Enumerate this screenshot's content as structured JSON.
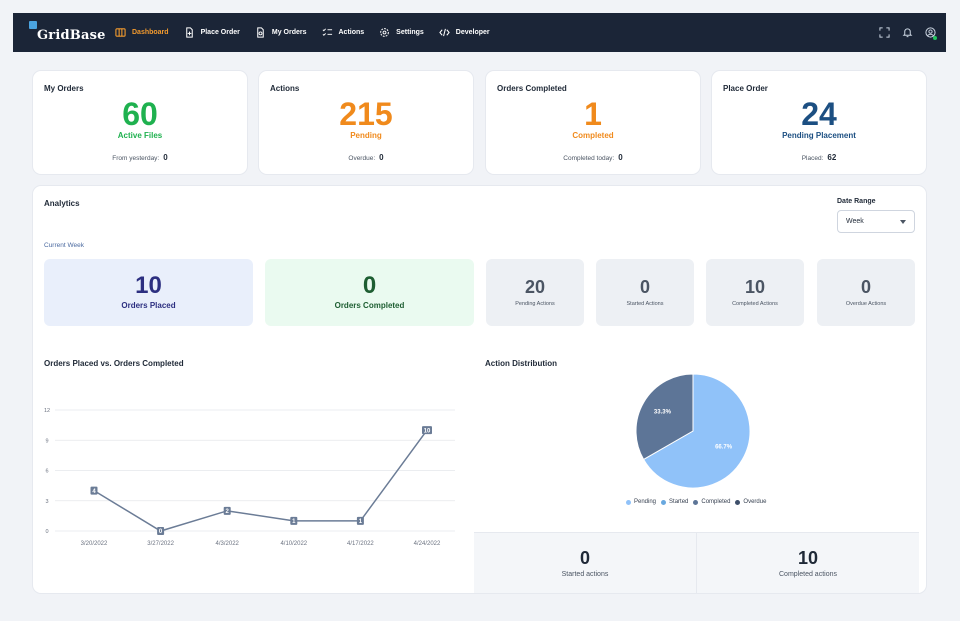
{
  "app": {
    "brand": "GridBase",
    "nav": [
      {
        "label": "Dashboard",
        "icon": "dashboard-icon",
        "active": true
      },
      {
        "label": "Place Order",
        "icon": "place-order-icon",
        "active": false
      },
      {
        "label": "My Orders",
        "icon": "my-orders-icon",
        "active": false
      },
      {
        "label": "Actions",
        "icon": "actions-icon",
        "active": false
      },
      {
        "label": "Settings",
        "icon": "gear-icon",
        "active": false
      },
      {
        "label": "Developer",
        "icon": "code-icon",
        "active": false
      }
    ],
    "right_icons": [
      "fullscreen-icon",
      "bell-icon",
      "user-icon"
    ]
  },
  "stats": [
    {
      "title": "My Orders",
      "value": "60",
      "subtitle": "Active Files",
      "foot_label": "From yesterday:",
      "foot_value": "0",
      "color": "#1fb14f"
    },
    {
      "title": "Actions",
      "value": "215",
      "subtitle": "Pending",
      "foot_label": "Overdue:",
      "foot_value": "0",
      "color": "#f08a1c"
    },
    {
      "title": "Orders Completed",
      "value": "1",
      "subtitle": "Completed",
      "foot_label": "Completed today:",
      "foot_value": "0",
      "color": "#f08a1c"
    },
    {
      "title": "Place Order",
      "value": "24",
      "subtitle": "Pending Placement",
      "foot_label": "Placed:",
      "foot_value": "62",
      "color": "#1c4f82"
    }
  ],
  "analytics": {
    "title": "Analytics",
    "date_range_label": "Date Range",
    "date_range_value": "Week",
    "period_label": "Current Week",
    "big_tiles": [
      {
        "value": "10",
        "label": "Orders Placed",
        "color": "#2c2f80",
        "bg": "#e9effb"
      },
      {
        "value": "0",
        "label": "Orders Completed",
        "color": "#1e5e32",
        "bg": "#eafaf0"
      }
    ],
    "small_tiles": [
      {
        "value": "20",
        "label": "Pending Actions"
      },
      {
        "value": "0",
        "label": "Started Actions"
      },
      {
        "value": "10",
        "label": "Completed Actions"
      },
      {
        "value": "0",
        "label": "Overdue Actions"
      }
    ],
    "line_title": "Orders Placed vs. Orders Completed",
    "pie_title": "Action Distribution",
    "bottom": [
      {
        "value": "0",
        "label": "Started actions"
      },
      {
        "value": "10",
        "label": "Completed actions"
      }
    ]
  },
  "chart_data": [
    {
      "type": "line",
      "title": "Orders Placed vs. Orders Completed",
      "x": [
        "3/20/2022",
        "3/27/2022",
        "4/3/2022",
        "4/10/2022",
        "4/17/2022",
        "4/24/2022"
      ],
      "series": [
        {
          "values": [
            4,
            0,
            2,
            1,
            1,
            10
          ]
        }
      ],
      "ylim": [
        0,
        12
      ],
      "yticks": [
        0,
        3,
        6,
        9,
        12
      ],
      "grid": true,
      "color": "#6b7c96"
    },
    {
      "type": "pie",
      "title": "Action Distribution",
      "labels": [
        "Pending",
        "Started",
        "Completed",
        "Overdue"
      ],
      "values": [
        66.7,
        0,
        33.3,
        0
      ],
      "value_labels": [
        "66.7%",
        "",
        "33.3%",
        ""
      ],
      "colors": [
        "#90c2f9",
        "#69a8df",
        "#5d7597",
        "#3d4f6a"
      ],
      "legend": "bottom"
    }
  ]
}
